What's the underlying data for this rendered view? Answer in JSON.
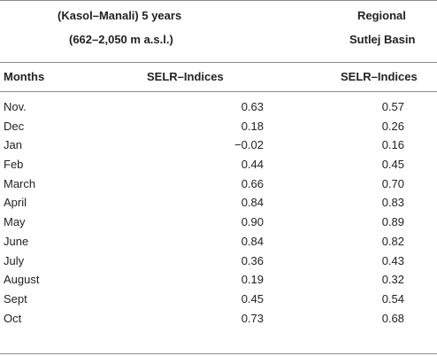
{
  "header": {
    "kasol_line1": "(Kasol–Manali) 5 years",
    "kasol_line2": "(662–2,050 m a.s.l.)",
    "regional_line1": "Regional",
    "regional_line2": "Sutlej Basin"
  },
  "columns": {
    "months": "Months",
    "selr_kasol": "SELR–Indices",
    "selr_regional": "SELR–Indices"
  },
  "rows": [
    {
      "month": "Nov.",
      "kasol": "0.63",
      "regional": "0.57"
    },
    {
      "month": "Dec",
      "kasol": "0.18",
      "regional": "0.26"
    },
    {
      "month": "Jan",
      "kasol": "−0.02",
      "regional": "0.16"
    },
    {
      "month": "Feb",
      "kasol": "0.44",
      "regional": "0.45"
    },
    {
      "month": "March",
      "kasol": "0.66",
      "regional": "0.70"
    },
    {
      "month": "April",
      "kasol": "0.84",
      "regional": "0.83"
    },
    {
      "month": "May",
      "kasol": "0.90",
      "regional": "0.89"
    },
    {
      "month": "June",
      "kasol": "0.84",
      "regional": "0.82"
    },
    {
      "month": "July",
      "kasol": "0.36",
      "regional": "0.43"
    },
    {
      "month": "August",
      "kasol": "0.19",
      "regional": "0.32"
    },
    {
      "month": "Sept",
      "kasol": "0.45",
      "regional": "0.54"
    },
    {
      "month": "Oct",
      "kasol": "0.73",
      "regional": "0.68"
    }
  ]
}
